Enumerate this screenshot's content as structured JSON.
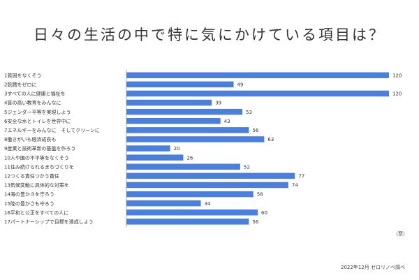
{
  "title": "日々の生活の中で特に気にかけている項目は？",
  "unit": "（票）",
  "source": "2022年12月 ゼロリノベ調べ",
  "colors": {
    "bar": "#4a7fe0",
    "axis": "#999999"
  },
  "chart_data": {
    "type": "bar",
    "orientation": "horizontal",
    "categories": [
      "1貧困をなくそう",
      "2飢餓をゼロに",
      "3すべての人に健康と福祉を",
      "4質の高い教育をみんなに",
      "5ジェンダー平等を実現しよう",
      "6安全な水とトイレを世界中に",
      "7エネルギーをみんなに　そしてクリーンに",
      "8働きがいも経済成長も",
      "9産業と技術革新の基盤を作ろう",
      "10人や国の不平等をなくそう",
      "11住み続けられるまちづくりを",
      "12つくる責任つかう責任",
      "13気候変動に具体的な対策を",
      "14海の豊かさを守ろう",
      "15陸の豊かさも守ろう",
      "16平和と公正をすべての人に",
      "17パートナーシップで目標を達成しよう"
    ],
    "values": [
      120,
      49,
      120,
      39,
      53,
      43,
      56,
      63,
      20,
      26,
      52,
      77,
      74,
      58,
      34,
      60,
      56
    ],
    "xlim": [
      0,
      120
    ],
    "grid": false,
    "legend": "none"
  }
}
